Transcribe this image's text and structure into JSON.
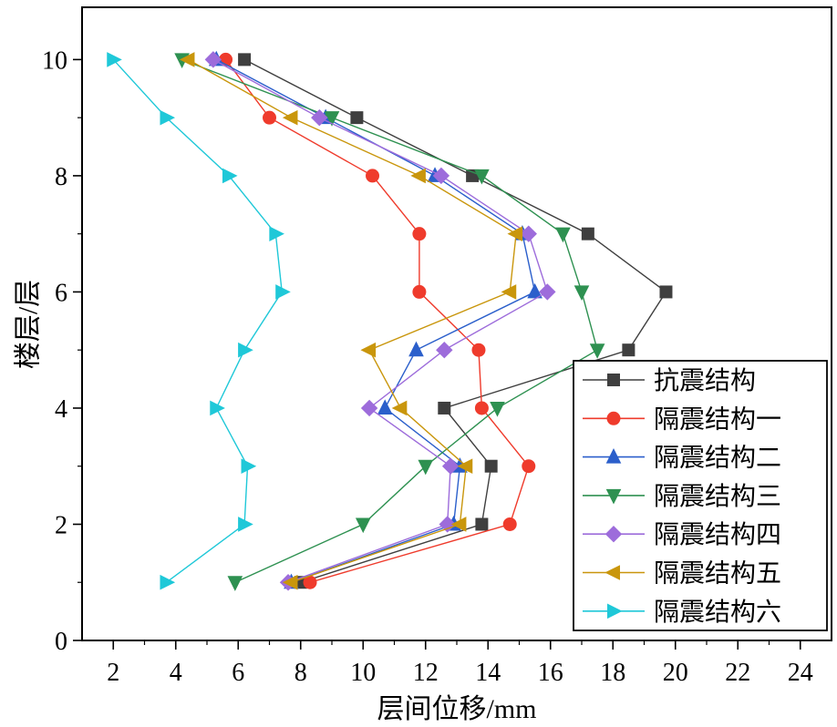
{
  "chart_data": {
    "type": "line",
    "title": "",
    "xlabel": "层间位移/mm",
    "ylabel": "楼层/层",
    "value_axis": "x",
    "xlim": [
      1,
      25
    ],
    "ylim": [
      0,
      10.9
    ],
    "x_ticks": [
      2,
      4,
      6,
      8,
      10,
      12,
      14,
      16,
      18,
      20,
      22,
      24
    ],
    "y_ticks": [
      0,
      2,
      4,
      6,
      8,
      10
    ],
    "grid": false,
    "legend_position": "right-middle",
    "floors": [
      1,
      2,
      3,
      4,
      5,
      6,
      7,
      8,
      9,
      10
    ],
    "series": [
      {
        "name": "抗震结构",
        "marker": "square",
        "color": "#3f3f3f",
        "values": [
          8.0,
          13.8,
          14.1,
          12.6,
          18.5,
          19.7,
          17.2,
          13.5,
          9.8,
          6.2
        ]
      },
      {
        "name": "隔震结构一",
        "marker": "circle",
        "color": "#ef3b2c",
        "values": [
          8.3,
          14.7,
          15.3,
          13.8,
          13.7,
          11.8,
          11.8,
          10.3,
          7.0,
          5.6
        ]
      },
      {
        "name": "隔震结构二",
        "marker": "triangle-up",
        "color": "#2b5fcb",
        "values": [
          7.7,
          12.9,
          13.1,
          10.7,
          11.7,
          15.5,
          15.1,
          12.3,
          8.8,
          5.3
        ]
      },
      {
        "name": "隔震结构三",
        "marker": "triangle-down",
        "color": "#2e9151",
        "values": [
          5.9,
          10.0,
          12.0,
          14.3,
          17.5,
          17.0,
          16.4,
          13.8,
          9.0,
          4.2
        ]
      },
      {
        "name": "隔震结构四",
        "marker": "diamond",
        "color": "#9d6cdb",
        "values": [
          7.6,
          12.7,
          12.8,
          10.2,
          12.6,
          15.9,
          15.3,
          12.5,
          8.6,
          5.2
        ]
      },
      {
        "name": "隔震结构五",
        "marker": "triangle-left",
        "color": "#c9960c",
        "values": [
          7.7,
          13.1,
          13.3,
          11.2,
          10.2,
          14.7,
          14.9,
          11.8,
          7.7,
          4.4
        ]
      },
      {
        "name": "隔震结构六",
        "marker": "triangle-right",
        "color": "#1fc8d8",
        "values": [
          3.7,
          6.2,
          6.3,
          5.3,
          6.2,
          7.4,
          7.2,
          5.7,
          3.7,
          2.0
        ]
      }
    ],
    "axis_color": "#000000",
    "background": "#ffffff"
  }
}
